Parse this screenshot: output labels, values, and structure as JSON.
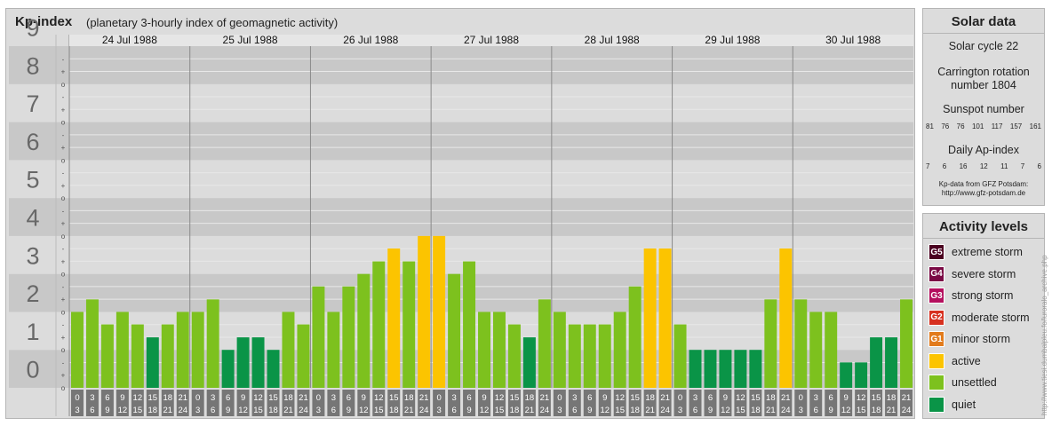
{
  "header": {
    "title": "Kp-index",
    "subtitle": "(planetary 3-hourly index of geomagnetic activity)"
  },
  "chart_data": {
    "type": "bar",
    "y_major_ticks": [
      "0",
      "1",
      "2",
      "3",
      "4",
      "5",
      "6",
      "7",
      "8",
      "9"
    ],
    "y_minor_labels": [
      "o",
      "+",
      "-"
    ],
    "ylim": [
      0,
      9
    ],
    "days": [
      {
        "date": "24 Jul 1988",
        "kp": [
          2.0,
          2.33,
          1.67,
          2.0,
          1.67,
          1.33,
          1.67,
          2.0
        ]
      },
      {
        "date": "25 Jul 1988",
        "kp": [
          2.0,
          2.33,
          1.0,
          1.33,
          1.33,
          1.0,
          2.0,
          1.67
        ]
      },
      {
        "date": "26 Jul 1988",
        "kp": [
          2.67,
          2.0,
          2.67,
          3.0,
          3.33,
          3.67,
          3.33,
          4.0
        ]
      },
      {
        "date": "27 Jul 1988",
        "kp": [
          4.0,
          3.0,
          3.33,
          2.0,
          2.0,
          1.67,
          1.33,
          2.33
        ]
      },
      {
        "date": "28 Jul 1988",
        "kp": [
          2.0,
          1.67,
          1.67,
          1.67,
          2.0,
          2.67,
          3.67,
          3.67
        ]
      },
      {
        "date": "29 Jul 1988",
        "kp": [
          1.67,
          1.0,
          1.0,
          1.0,
          1.0,
          1.0,
          2.33,
          3.67
        ]
      },
      {
        "date": "30 Jul 1988",
        "kp": [
          2.33,
          2.0,
          2.0,
          0.67,
          0.67,
          1.33,
          1.33,
          2.33
        ]
      }
    ],
    "interval_starts": [
      "0",
      "3",
      "6",
      "9",
      "12",
      "15",
      "18",
      "21"
    ],
    "interval_ends": [
      "3",
      "6",
      "9",
      "12",
      "15",
      "18",
      "21",
      "24"
    ],
    "colors": {
      "quiet": "#0a9447",
      "unsettled": "#7dc11e",
      "active": "#fcc400",
      "band_dark": "#c8c8c8",
      "band_light": "#dcdcdc",
      "axis_label": "#686868",
      "hour_box": "#767676"
    }
  },
  "solar": {
    "title": "Solar data",
    "cycle": "Solar cycle 22",
    "carrington_line1": "Carrington rotation",
    "carrington_line2": "number 1804",
    "sunspot_title": "Sunspot number",
    "sunspot_values": [
      "81",
      "76",
      "76",
      "101",
      "117",
      "157",
      "161"
    ],
    "ap_title": "Daily Ap-index",
    "ap_values": [
      "7",
      "6",
      "16",
      "12",
      "11",
      "7",
      "6"
    ],
    "source_line1": "Kp-data from GFZ Potsdam:",
    "source_line2": "http://www.gfz-potsdam.de"
  },
  "levels": {
    "title": "Activity levels",
    "items": [
      {
        "code": "G5",
        "label": "extreme storm",
        "color": "#4b0020"
      },
      {
        "code": "G4",
        "label": "severe storm",
        "color": "#7a0a45"
      },
      {
        "code": "G3",
        "label": "strong storm",
        "color": "#b4105e"
      },
      {
        "code": "G2",
        "label": "moderate storm",
        "color": "#d7301f"
      },
      {
        "code": "G1",
        "label": "minor storm",
        "color": "#e27b1c"
      },
      {
        "code": "",
        "label": "active",
        "color": "#fcc400"
      },
      {
        "code": "",
        "label": "unsettled",
        "color": "#7dc11e"
      },
      {
        "code": "",
        "label": "quiet",
        "color": "#0a9447"
      }
    ]
  },
  "watermark": "http://www.tiesi.dumbalpleu.fo/luroralo_archive.php"
}
